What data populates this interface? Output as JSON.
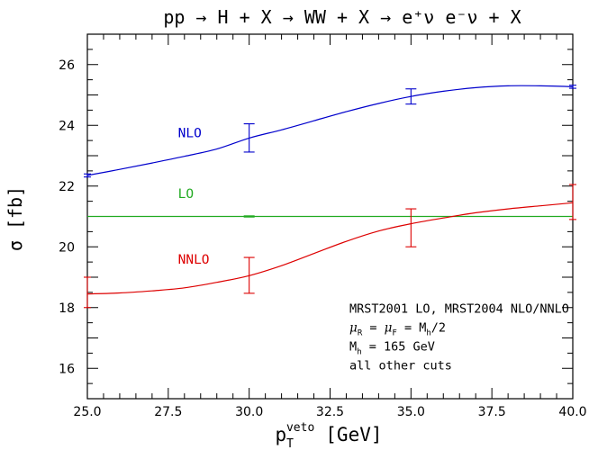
{
  "chart_data": {
    "type": "line",
    "title": "pp → H + X → WW + X → e⁺ν e⁻ν + X",
    "xlabel": {
      "main": "p",
      "sub": "T",
      "sup": "veto",
      "unit": "[GeV]"
    },
    "ylabel": "σ [fb]",
    "xlim": [
      25.0,
      40.0
    ],
    "ylim": [
      15.0,
      27.0
    ],
    "x_ticks": [
      "25.0",
      "27.5",
      "30.0",
      "32.5",
      "35.0",
      "37.5",
      "40.0"
    ],
    "y_ticks": [
      "16",
      "18",
      "20",
      "22",
      "24",
      "26"
    ],
    "x_tick_values": [
      25.0,
      27.5,
      30.0,
      32.5,
      35.0,
      37.5,
      40.0
    ],
    "y_tick_values": [
      16,
      18,
      20,
      22,
      24,
      26
    ],
    "grid": false,
    "series": [
      {
        "name": "NLO",
        "color": "#0000cc",
        "x": [
          25.0,
          26.0,
          27.0,
          28.0,
          29.0,
          30.0,
          31.0,
          32.0,
          33.0,
          34.0,
          35.0,
          36.0,
          37.0,
          38.0,
          39.0,
          40.0
        ],
        "y": [
          22.35,
          22.55,
          22.76,
          22.98,
          23.22,
          23.58,
          23.85,
          24.15,
          24.45,
          24.72,
          24.95,
          25.12,
          25.24,
          25.3,
          25.3,
          25.27
        ],
        "errorbars": [
          {
            "x": 25.0,
            "low": 22.3,
            "high": 22.4
          },
          {
            "x": 30.0,
            "low": 23.12,
            "high": 24.05
          },
          {
            "x": 35.0,
            "low": 24.7,
            "high": 25.2
          },
          {
            "x": 40.0,
            "low": 25.22,
            "high": 25.32
          }
        ]
      },
      {
        "name": "LO",
        "color": "#22aa22",
        "x": [
          25.0,
          40.0
        ],
        "y": [
          21.0,
          21.0
        ],
        "errorbars": [
          {
            "x": 30.0,
            "low": 20.98,
            "high": 21.02
          }
        ]
      },
      {
        "name": "NNLO",
        "color": "#dd0000",
        "x": [
          25.0,
          26.0,
          27.0,
          28.0,
          29.0,
          30.0,
          31.0,
          32.0,
          33.0,
          34.0,
          35.0,
          36.0,
          37.0,
          38.0,
          39.0,
          40.0
        ],
        "y": [
          18.45,
          18.48,
          18.55,
          18.65,
          18.83,
          19.05,
          19.38,
          19.78,
          20.18,
          20.52,
          20.76,
          20.95,
          21.12,
          21.25,
          21.35,
          21.45
        ],
        "errorbars": [
          {
            "x": 25.0,
            "low": 18.0,
            "high": 19.0
          },
          {
            "x": 30.0,
            "low": 18.47,
            "high": 19.65
          },
          {
            "x": 35.0,
            "low": 20.0,
            "high": 21.25
          },
          {
            "x": 40.0,
            "low": 20.9,
            "high": 22.05
          }
        ]
      }
    ],
    "series_labels": [
      {
        "text": "NLO",
        "x": 27.8,
        "y": 23.75,
        "color": "#0000cc"
      },
      {
        "text": "LO",
        "x": 27.8,
        "y": 21.75,
        "color": "#22aa22"
      },
      {
        "text": "NNLO",
        "x": 27.8,
        "y": 19.6,
        "color": "#dd0000"
      }
    ],
    "annotations": {
      "x": 33.1,
      "y": 17.95,
      "lines": [
        "MRST2001 LO, MRST2004 NLO/NNLO",
        "μR = μF = Mh/2",
        "Mh = 165 GeV",
        "all other cuts"
      ],
      "line2": {
        "mu": "μ",
        "R": "R",
        "eq": " = ",
        "F": "F",
        "rhs": " = M",
        "h": "h",
        "tail": "/2"
      },
      "line3": {
        "M": "M",
        "h": "h",
        "tail": " = 165 GeV"
      }
    }
  }
}
